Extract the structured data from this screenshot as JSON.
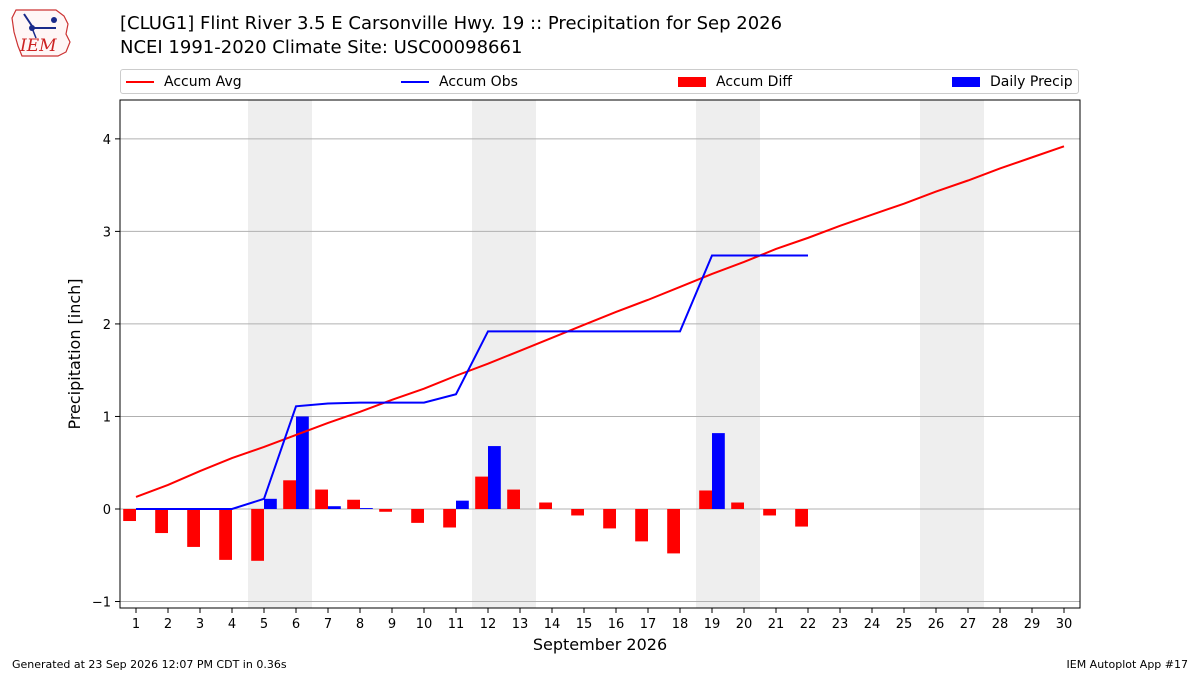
{
  "header": {
    "title_line1": "[CLUG1] Flint River 3.5 E Carsonville Hwy. 19 :: Precipitation for Sep 2026",
    "title_line2": "NCEI 1991-2020 Climate Site: USC00098661",
    "logo_text": "IEM"
  },
  "footer": {
    "generated": "Generated at 23 Sep 2026 12:07 PM CDT in 0.36s",
    "app": "IEM Autoplot App #17"
  },
  "colors": {
    "accum_avg": "#ff0000",
    "accum_obs": "#0000ff",
    "accum_diff": "#ff0000",
    "daily_precip": "#0000ff",
    "weekend_shade": "#eeeeee",
    "grid": "#b0b0b0"
  },
  "chart_data": {
    "type": "bar",
    "xlabel": "September 2026",
    "ylabel": "Precipitation [inch]",
    "xlim": [
      0.5,
      30.5
    ],
    "ylim": [
      -1.07,
      4.42
    ],
    "yticks": [
      -1,
      0,
      1,
      2,
      3,
      4
    ],
    "grid": "horizontal",
    "legend_placement": "top",
    "days": [
      1,
      2,
      3,
      4,
      5,
      6,
      7,
      8,
      9,
      10,
      11,
      12,
      13,
      14,
      15,
      16,
      17,
      18,
      19,
      20,
      21,
      22,
      23,
      24,
      25,
      26,
      27,
      28,
      29,
      30
    ],
    "weekend_shading": [
      [
        5,
        6
      ],
      [
        12,
        13
      ],
      [
        19,
        20
      ],
      [
        26,
        27
      ]
    ],
    "series": [
      {
        "name": "Accum Avg",
        "kind": "line",
        "values": [
          0.13,
          0.26,
          0.41,
          0.55,
          0.67,
          0.8,
          0.93,
          1.05,
          1.18,
          1.3,
          1.44,
          1.57,
          1.71,
          1.85,
          1.99,
          2.13,
          2.26,
          2.4,
          2.54,
          2.67,
          2.81,
          2.93,
          3.06,
          3.18,
          3.3,
          3.43,
          3.55,
          3.68,
          3.8,
          3.92
        ]
      },
      {
        "name": "Accum Obs",
        "kind": "line",
        "values": [
          0.0,
          0.0,
          0.0,
          0.0,
          0.11,
          1.11,
          1.14,
          1.15,
          1.15,
          1.15,
          1.24,
          1.92,
          1.92,
          1.92,
          1.92,
          1.92,
          1.92,
          1.92,
          2.74,
          2.74,
          2.74,
          2.74
        ]
      },
      {
        "name": "Accum Diff",
        "kind": "bar",
        "values": [
          -0.13,
          -0.26,
          -0.41,
          -0.55,
          -0.56,
          0.31,
          0.21,
          0.1,
          -0.03,
          -0.15,
          -0.2,
          0.35,
          0.21,
          0.07,
          -0.07,
          -0.21,
          -0.35,
          -0.48,
          0.2,
          0.07,
          -0.07,
          -0.19
        ]
      },
      {
        "name": "Daily Precip",
        "kind": "bar",
        "values": [
          0.0,
          0.0,
          0.0,
          0.0,
          0.11,
          1.0,
          0.03,
          0.01,
          0.0,
          0.0,
          0.09,
          0.68,
          0.0,
          0.0,
          0.0,
          0.0,
          0.0,
          0.0,
          0.82,
          0.0,
          0.0,
          0.0
        ]
      }
    ]
  }
}
